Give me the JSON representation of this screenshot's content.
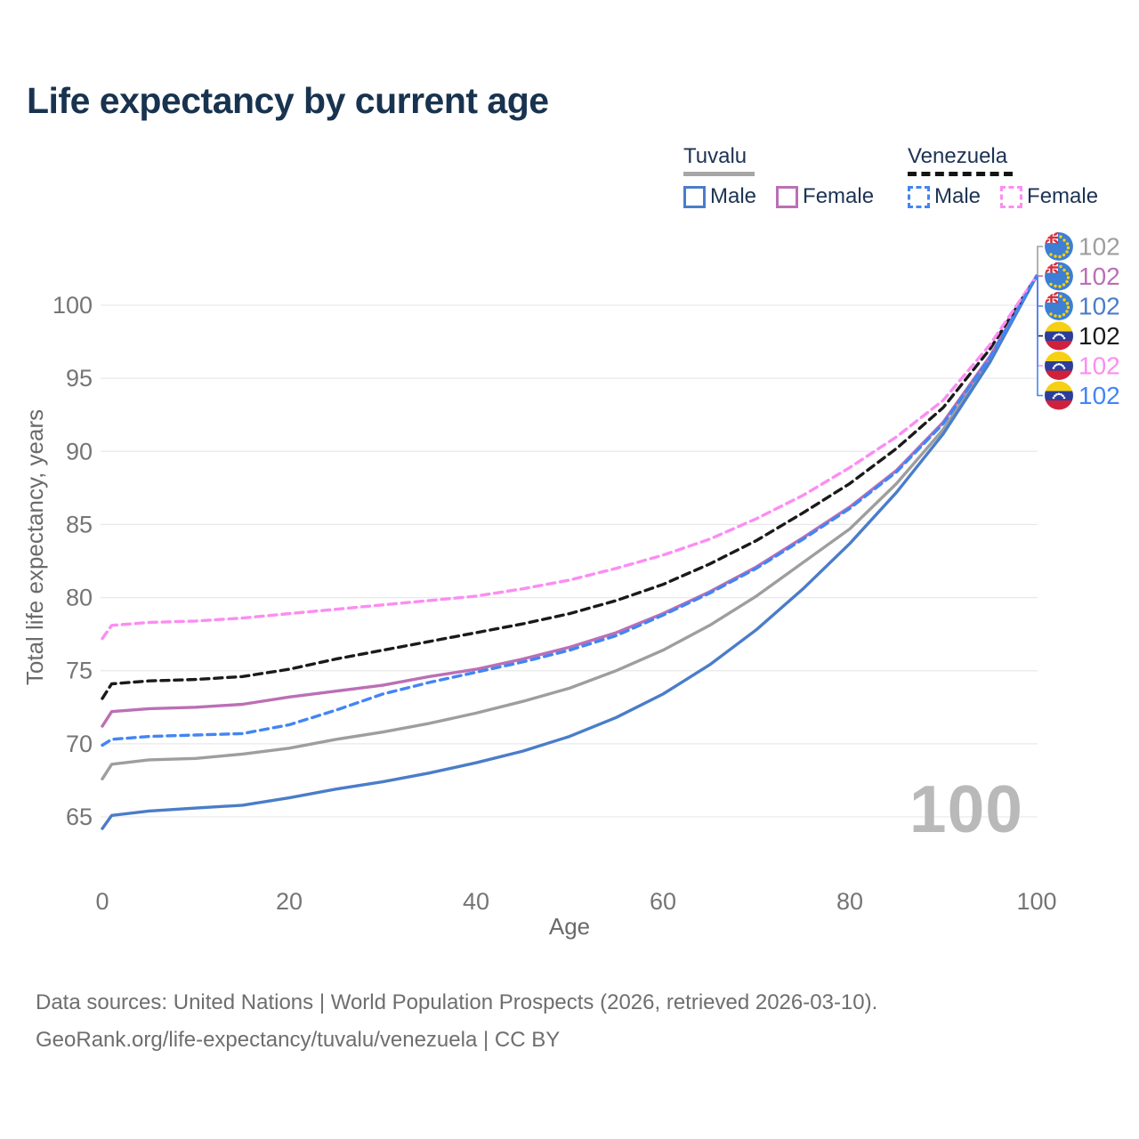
{
  "title": "Life expectancy by current age",
  "legend": {
    "groups": [
      {
        "name": "Tuvalu",
        "underline_style": "solid",
        "underline_color": "#a6a6a6",
        "items": [
          {
            "label": "Male",
            "color": "#4a7dc9",
            "dashed": false
          },
          {
            "label": "Female",
            "color": "#bb6fb5",
            "dashed": false
          }
        ]
      },
      {
        "name": "Venezuela",
        "underline_style": "dashed",
        "underline_color": "#141414",
        "items": [
          {
            "label": "Male",
            "color": "#4285f4",
            "dashed": true
          },
          {
            "label": "Female",
            "color": "#fc8df2",
            "dashed": true
          }
        ]
      }
    ]
  },
  "watermark": "100",
  "footer": {
    "line1": "Data sources: United Nations | World Population Prospects (2026, retrieved 2026-03-10).",
    "line2": "GeoRank.org/life-expectancy/tuvalu/venezuela | CC BY"
  },
  "chart_data": {
    "type": "line",
    "title": "Life expectancy by current age",
    "xlabel": "Age",
    "ylabel": "Total life expectancy, years",
    "xlim": [
      0,
      100
    ],
    "ylim": [
      63,
      103
    ],
    "xticks": [
      0,
      20,
      40,
      60,
      80,
      100
    ],
    "yticks": [
      65,
      70,
      75,
      80,
      85,
      90,
      95,
      100
    ],
    "grid": "horizontal",
    "legend_position": "top-right",
    "x": [
      0,
      1,
      5,
      10,
      15,
      20,
      25,
      30,
      35,
      40,
      45,
      50,
      55,
      60,
      65,
      70,
      75,
      80,
      85,
      90,
      95,
      100
    ],
    "series": [
      {
        "name": "Tuvalu",
        "flag": "tuvalu",
        "color": "#9e9e9e",
        "dashed": false,
        "end_label": "102",
        "values": [
          67.6,
          68.6,
          68.9,
          69.0,
          69.3,
          69.7,
          70.3,
          70.8,
          71.4,
          72.1,
          72.9,
          73.8,
          75.0,
          76.4,
          78.1,
          80.1,
          82.4,
          84.7,
          87.8,
          91.5,
          96.3,
          102
        ]
      },
      {
        "name": "Tuvalu Female",
        "flag": "tuvalu",
        "color": "#bb6fb5",
        "dashed": false,
        "end_label": "102",
        "values": [
          71.2,
          72.2,
          72.4,
          72.5,
          72.7,
          73.2,
          73.6,
          74.0,
          74.6,
          75.1,
          75.8,
          76.6,
          77.6,
          78.9,
          80.4,
          82.1,
          84.1,
          86.2,
          88.7,
          92.0,
          96.5,
          102
        ]
      },
      {
        "name": "Tuvalu Male",
        "flag": "tuvalu",
        "color": "#4a7dc9",
        "dashed": false,
        "end_label": "102",
        "values": [
          64.2,
          65.1,
          65.4,
          65.6,
          65.8,
          66.3,
          66.9,
          67.4,
          68.0,
          68.7,
          69.5,
          70.5,
          71.8,
          73.4,
          75.4,
          77.8,
          80.6,
          83.7,
          87.2,
          91.2,
          96.1,
          102
        ]
      },
      {
        "name": "Venezuela",
        "flag": "venezuela",
        "color": "#1a1a1a",
        "dashed": true,
        "end_label": "102",
        "values": [
          73.1,
          74.1,
          74.3,
          74.4,
          74.6,
          75.1,
          75.8,
          76.4,
          77.0,
          77.6,
          78.2,
          78.9,
          79.8,
          80.9,
          82.3,
          83.9,
          85.8,
          87.8,
          90.2,
          93.0,
          97.0,
          102
        ]
      },
      {
        "name": "Venezuela Female",
        "flag": "venezuela",
        "color": "#fc8df2",
        "dashed": true,
        "end_label": "102",
        "values": [
          77.2,
          78.1,
          78.3,
          78.4,
          78.6,
          78.9,
          79.2,
          79.5,
          79.8,
          80.1,
          80.6,
          81.2,
          82.0,
          82.9,
          84.0,
          85.4,
          87.0,
          88.9,
          91.0,
          93.5,
          97.3,
          102
        ]
      },
      {
        "name": "Venezuela Male",
        "flag": "venezuela",
        "color": "#4285f4",
        "dashed": true,
        "end_label": "102",
        "values": [
          69.9,
          70.3,
          70.5,
          70.6,
          70.7,
          71.3,
          72.3,
          73.4,
          74.2,
          74.9,
          75.6,
          76.4,
          77.4,
          78.8,
          80.3,
          82.0,
          84.0,
          86.1,
          88.6,
          91.9,
          96.4,
          102
        ]
      }
    ]
  }
}
